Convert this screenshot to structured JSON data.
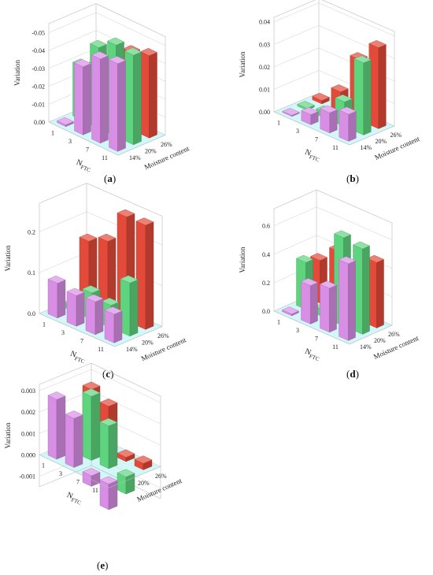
{
  "colors": {
    "14%": "#d98ee6",
    "20%": "#5fd47f",
    "26%": "#e44a3a",
    "floor": "#aef0f4",
    "frame": "#b8b8b8"
  },
  "tag_parts": {
    "open": "(",
    "close": ")"
  },
  "chart_data": [
    {
      "id": "a",
      "label": "a",
      "type": "bar",
      "ylabel": "Variation",
      "xlabel_base": "N",
      "xlabel_sub": "FTC",
      "zlabel": "Moisture content",
      "inverted": true,
      "x_categories": [
        "1",
        "3",
        "7",
        "11"
      ],
      "z_categories": [
        "14%",
        "20%",
        "26%"
      ],
      "yticks": [
        "0.00",
        "-0.01",
        "-0.02",
        "-0.03",
        "-0.04",
        "-0.05"
      ],
      "ylim": [
        0,
        -0.055
      ],
      "series": [
        {
          "name": "14%",
          "values": [
            -0.001,
            -0.038,
            -0.047,
            -0.049
          ]
        },
        {
          "name": "20%",
          "values": [
            -0.03,
            -0.045,
            -0.051,
            -0.05
          ]
        },
        {
          "name": "26%",
          "values": [
            -0.026,
            -0.034,
            -0.043,
            -0.046
          ]
        }
      ]
    },
    {
      "id": "b",
      "label": "b",
      "type": "bar",
      "ylabel": "Variation",
      "xlabel_base": "N",
      "xlabel_sub": "FTC",
      "zlabel": "Moisture content",
      "inverted": false,
      "x_categories": [
        "1",
        "3",
        "7",
        "11"
      ],
      "z_categories": [
        "14%",
        "20%",
        "26%"
      ],
      "yticks": [
        "0.00",
        "0.01",
        "0.02",
        "0.03",
        "0.04"
      ],
      "ylim": [
        0,
        0.042
      ],
      "series": [
        {
          "name": "14%",
          "values": [
            0.0005,
            0.0045,
            0.009,
            0.012
          ]
        },
        {
          "name": "20%",
          "values": [
            0.0008,
            0.0025,
            0.011,
            0.032
          ]
        },
        {
          "name": "26%",
          "values": [
            0.0015,
            0.009,
            0.027,
            0.036
          ]
        }
      ]
    },
    {
      "id": "c",
      "label": "c",
      "type": "bar",
      "ylabel": "Variation",
      "xlabel_base": "N",
      "xlabel_sub": "FTC",
      "zlabel": "Moisture content",
      "inverted": false,
      "x_categories": [
        "1",
        "3",
        "7",
        "11"
      ],
      "z_categories": [
        "14%",
        "20%",
        "26%"
      ],
      "yticks": [
        "0.0",
        "0.1",
        "0.2"
      ],
      "ylim": [
        0,
        0.27
      ],
      "series": [
        {
          "name": "14%",
          "values": [
            0.085,
            0.075,
            0.08,
            0.07
          ]
        },
        {
          "name": "20%",
          "values": [
            0.012,
            0.065,
            0.055,
            0.13
          ]
        },
        {
          "name": "26%",
          "values": [
            0.155,
            0.175,
            0.255,
            0.255
          ]
        }
      ]
    },
    {
      "id": "d",
      "label": "d",
      "type": "bar",
      "ylabel": "Variation",
      "xlabel_base": "N",
      "xlabel_sub": "FTC",
      "zlabel": "Moisture content",
      "inverted": false,
      "x_categories": [
        "1",
        "3",
        "7",
        "11"
      ],
      "z_categories": [
        "14%",
        "20%",
        "26%"
      ],
      "yticks": [
        "0.0",
        "0.2",
        "0.4",
        "0.6"
      ],
      "ylim": [
        0,
        0.72
      ],
      "series": [
        {
          "name": "14%",
          "values": [
            0.012,
            0.27,
            0.31,
            0.54
          ]
        },
        {
          "name": "20%",
          "values": [
            0.33,
            0.05,
            0.62,
            0.6
          ]
        },
        {
          "name": "26%",
          "values": [
            0.3,
            0.42,
            0.24,
            0.46
          ]
        }
      ]
    },
    {
      "id": "e",
      "label": "e",
      "type": "bar",
      "ylabel": "Variation",
      "xlabel_base": "N",
      "xlabel_sub": "FTC",
      "zlabel": "Moisture content",
      "inverted": false,
      "x_categories": [
        "1",
        "3",
        "7",
        "11"
      ],
      "z_categories": [
        "14%",
        "20%",
        "26%"
      ],
      "yticks": [
        "-0.001",
        "0.000",
        "0.001",
        "0.002",
        "0.003"
      ],
      "ylim": [
        -0.0015,
        0.0033
      ],
      "series": [
        {
          "name": "14%",
          "values": [
            0.0028,
            0.0023,
            -0.0005,
            -0.0012
          ]
        },
        {
          "name": "20%",
          "values": [
            0.0013,
            0.003,
            0.002,
            -0.0008
          ]
        },
        {
          "name": "26%",
          "values": [
            0.0026,
            0.0022,
            0.0002,
            0.0003
          ]
        }
      ]
    }
  ]
}
